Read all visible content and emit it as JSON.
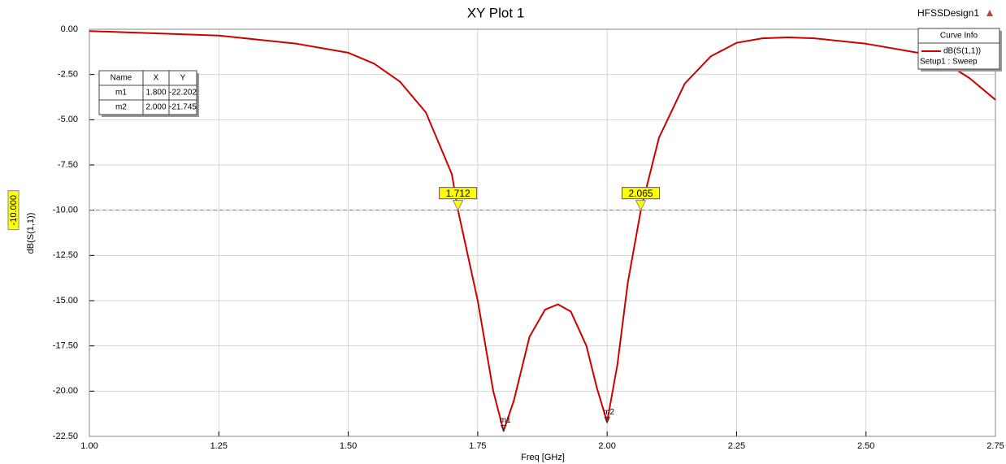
{
  "chart_data": {
    "type": "line",
    "title": "XY Plot 1",
    "design_name": "HFSSDesign1",
    "x_label": "Freq [GHz]",
    "y_label": "dB(S(1,1))",
    "legend_title": "Curve Info",
    "legend_subtitle": "Setup1 : Sweep",
    "x": [
      1.0,
      1.25,
      1.4,
      1.5,
      1.55,
      1.6,
      1.65,
      1.7,
      1.712,
      1.75,
      1.78,
      1.8,
      1.82,
      1.85,
      1.88,
      1.905,
      1.93,
      1.96,
      1.98,
      2.0,
      2.02,
      2.04,
      2.065,
      2.1,
      2.15,
      2.2,
      2.25,
      2.3,
      2.35,
      2.4,
      2.5,
      2.6,
      2.65,
      2.7,
      2.75
    ],
    "series": [
      {
        "name": "dB(S(1,1))",
        "color": "#cc0000",
        "values": [
          -0.1,
          -0.35,
          -0.8,
          -1.3,
          -1.9,
          -2.9,
          -4.6,
          -8.0,
          -10.0,
          -15.0,
          -20.0,
          -22.2,
          -20.5,
          -17.0,
          -15.5,
          -15.2,
          -15.6,
          -17.5,
          -19.8,
          -21.7,
          -18.5,
          -14.0,
          -10.0,
          -6.0,
          -3.0,
          -1.5,
          -0.75,
          -0.5,
          -0.45,
          -0.5,
          -0.8,
          -1.3,
          -1.8,
          -2.7,
          -3.9
        ]
      }
    ],
    "xlim": [
      1.0,
      2.75
    ],
    "ylim": [
      -22.5,
      0
    ],
    "xticks": [
      {
        "value": 1,
        "label": "1.00"
      },
      {
        "value": 1.25,
        "label": "1.25"
      },
      {
        "value": 1.5,
        "label": "1.50"
      },
      {
        "value": 1.75,
        "label": "1.75"
      },
      {
        "value": 2,
        "label": "2.00"
      },
      {
        "value": 2.25,
        "label": "2.25"
      },
      {
        "value": 2.5,
        "label": "2.50"
      },
      {
        "value": 2.75,
        "label": "2.75"
      }
    ],
    "yticks": [
      {
        "value": 0,
        "label": "0.00"
      },
      {
        "value": -2.5,
        "label": "-2.50"
      },
      {
        "value": -5,
        "label": "-5.00"
      },
      {
        "value": -7.5,
        "label": "-7.50"
      },
      {
        "value": -10,
        "label": "-10.00"
      },
      {
        "value": -12.5,
        "label": "-12.50"
      },
      {
        "value": -15,
        "label": "-15.00"
      },
      {
        "value": -17.5,
        "label": "-17.50"
      },
      {
        "value": -20,
        "label": "-20.00"
      },
      {
        "value": -22.5,
        "label": "-22.50"
      }
    ],
    "grid": true,
    "reference_line": {
      "value": -10,
      "label": "-10.000"
    },
    "crossings": [
      1.712,
      2.065
    ],
    "marker_columns": [
      "Name",
      "X",
      "Y"
    ],
    "markers": [
      {
        "name": "m1",
        "x": 1.8,
        "x_label": "1.800",
        "y": -22.202,
        "y_label": "-22.202"
      },
      {
        "name": "m2",
        "x": 2.0,
        "x_label": "2.000",
        "y": -21.745,
        "y_label": "-21.745"
      }
    ]
  }
}
